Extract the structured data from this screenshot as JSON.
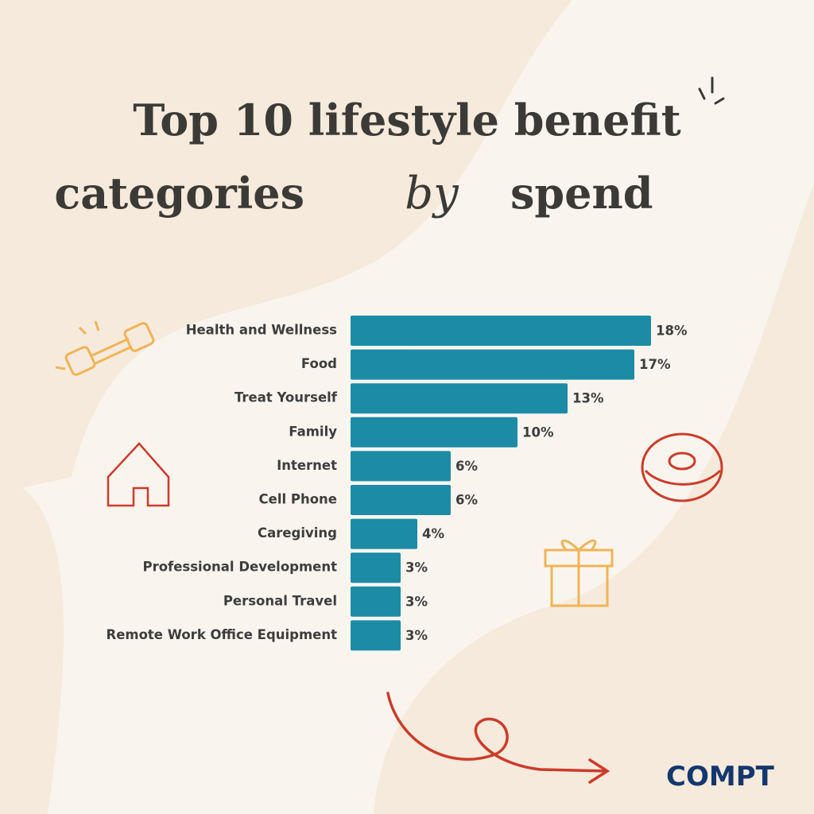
{
  "chart_data": {
    "type": "barh",
    "title": {
      "line1": "Top 10 lifestyle benefit",
      "line2_start": "categories",
      "accent": "by",
      "line2_end": "spend"
    },
    "categories": [
      "Health and Wellness",
      "Food",
      "Treat Yourself",
      "Family",
      "Internet",
      "Cell Phone",
      "Caregiving",
      "Professional Development",
      "Personal Travel",
      "Remote Work Office Equipment"
    ],
    "values": [
      18,
      17,
      13,
      10,
      6,
      6,
      4,
      3,
      3,
      3
    ],
    "value_labels": [
      "18%",
      "17%",
      "13%",
      "10%",
      "6%",
      "6%",
      "4%",
      "3%",
      "3%",
      "3%"
    ],
    "color": "#1b8ba6"
  },
  "brand": "COMPT"
}
